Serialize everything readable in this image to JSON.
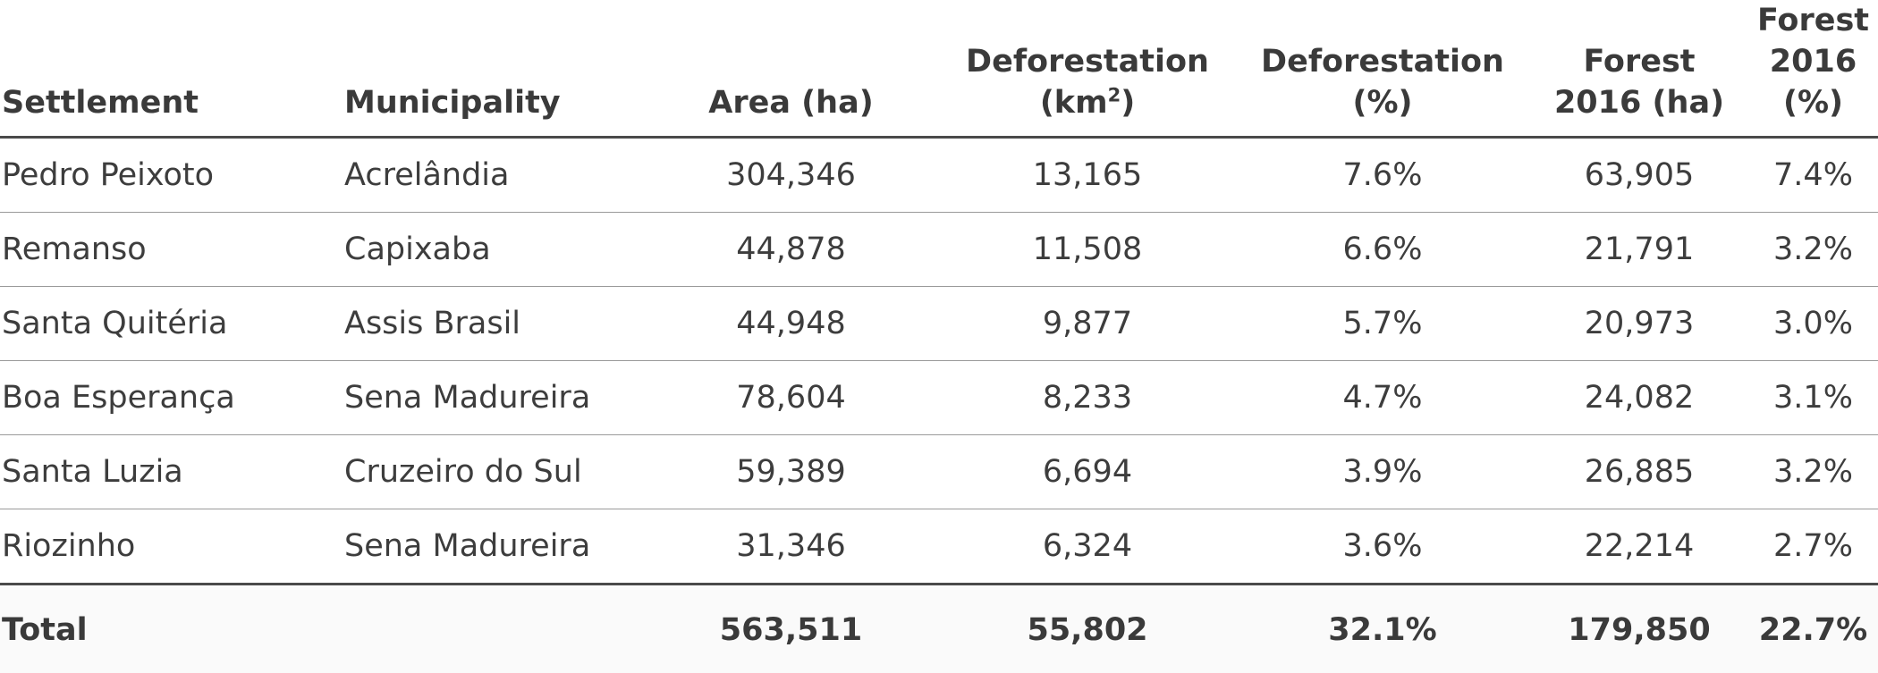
{
  "headers": {
    "settlement": "Settlement",
    "municipality": "Municipality",
    "area": "Area (ha)",
    "deforestation_km2_line1": "Deforestation",
    "deforestation_km2_line2_pre": "(km",
    "deforestation_km2_line2_sup": "2",
    "deforestation_km2_line2_post": ")",
    "deforestation_pct_line1": "Deforestation",
    "deforestation_pct_line2": "(%)",
    "forest_ha_line1": "Forest",
    "forest_ha_line2": "2016 (ha)",
    "forest_pct_line1": "Forest",
    "forest_pct_line2": "2016 (%)"
  },
  "rows": [
    {
      "settlement": "Pedro Peixoto",
      "municipality": "Acrelândia",
      "area": "304,346",
      "def_km2": "13,165",
      "def_pct": "7.6%",
      "forest_ha": "63,905",
      "forest_pct": "7.4%"
    },
    {
      "settlement": "Remanso",
      "municipality": "Capixaba",
      "area": "44,878",
      "def_km2": "11,508",
      "def_pct": "6.6%",
      "forest_ha": "21,791",
      "forest_pct": "3.2%"
    },
    {
      "settlement": "Santa Quitéria",
      "municipality": "Assis Brasil",
      "area": "44,948",
      "def_km2": "9,877",
      "def_pct": "5.7%",
      "forest_ha": "20,973",
      "forest_pct": "3.0%"
    },
    {
      "settlement": "Boa Esperança",
      "municipality": "Sena Madureira",
      "area": "78,604",
      "def_km2": "8,233",
      "def_pct": "4.7%",
      "forest_ha": "24,082",
      "forest_pct": "3.1%"
    },
    {
      "settlement": "Santa Luzia",
      "municipality": "Cruzeiro do Sul",
      "area": "59,389",
      "def_km2": "6,694",
      "def_pct": "3.9%",
      "forest_ha": "26,885",
      "forest_pct": "3.2%"
    },
    {
      "settlement": "Riozinho",
      "municipality": "Sena Madureira",
      "area": "31,346",
      "def_km2": "6,324",
      "def_pct": "3.6%",
      "forest_ha": "22,214",
      "forest_pct": "2.7%"
    }
  ],
  "total": {
    "label": "Total",
    "municipality": "",
    "area": "563,511",
    "def_km2": "55,802",
    "def_pct": "32.1%",
    "forest_ha": "179,850",
    "forest_pct": "22.7%"
  }
}
